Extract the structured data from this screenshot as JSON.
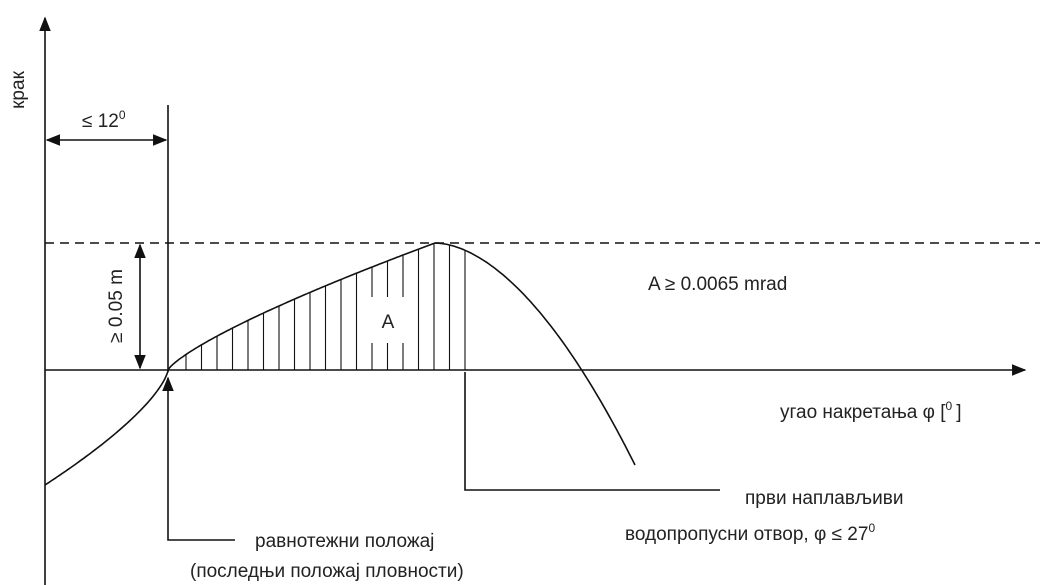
{
  "axes": {
    "y_label": "крак",
    "x_label": "угао накретања φ [",
    "x_label_sup": "0",
    "x_label_end": "]"
  },
  "angle_limit": {
    "label": "≤ 12",
    "sup": "0"
  },
  "height_limit": {
    "label": "≥ 0.05 m"
  },
  "area": {
    "label": "A",
    "condition": "A ≥ 0.0065 mrad"
  },
  "callouts": [
    {
      "lines": [
        "први наплављиви",
        "водопропусни отвор, φ ≤ 27"
      ],
      "sup": "0"
    },
    {
      "lines": [
        "равнотежни положај",
        "(последњи положај пловности)"
      ]
    }
  ]
}
